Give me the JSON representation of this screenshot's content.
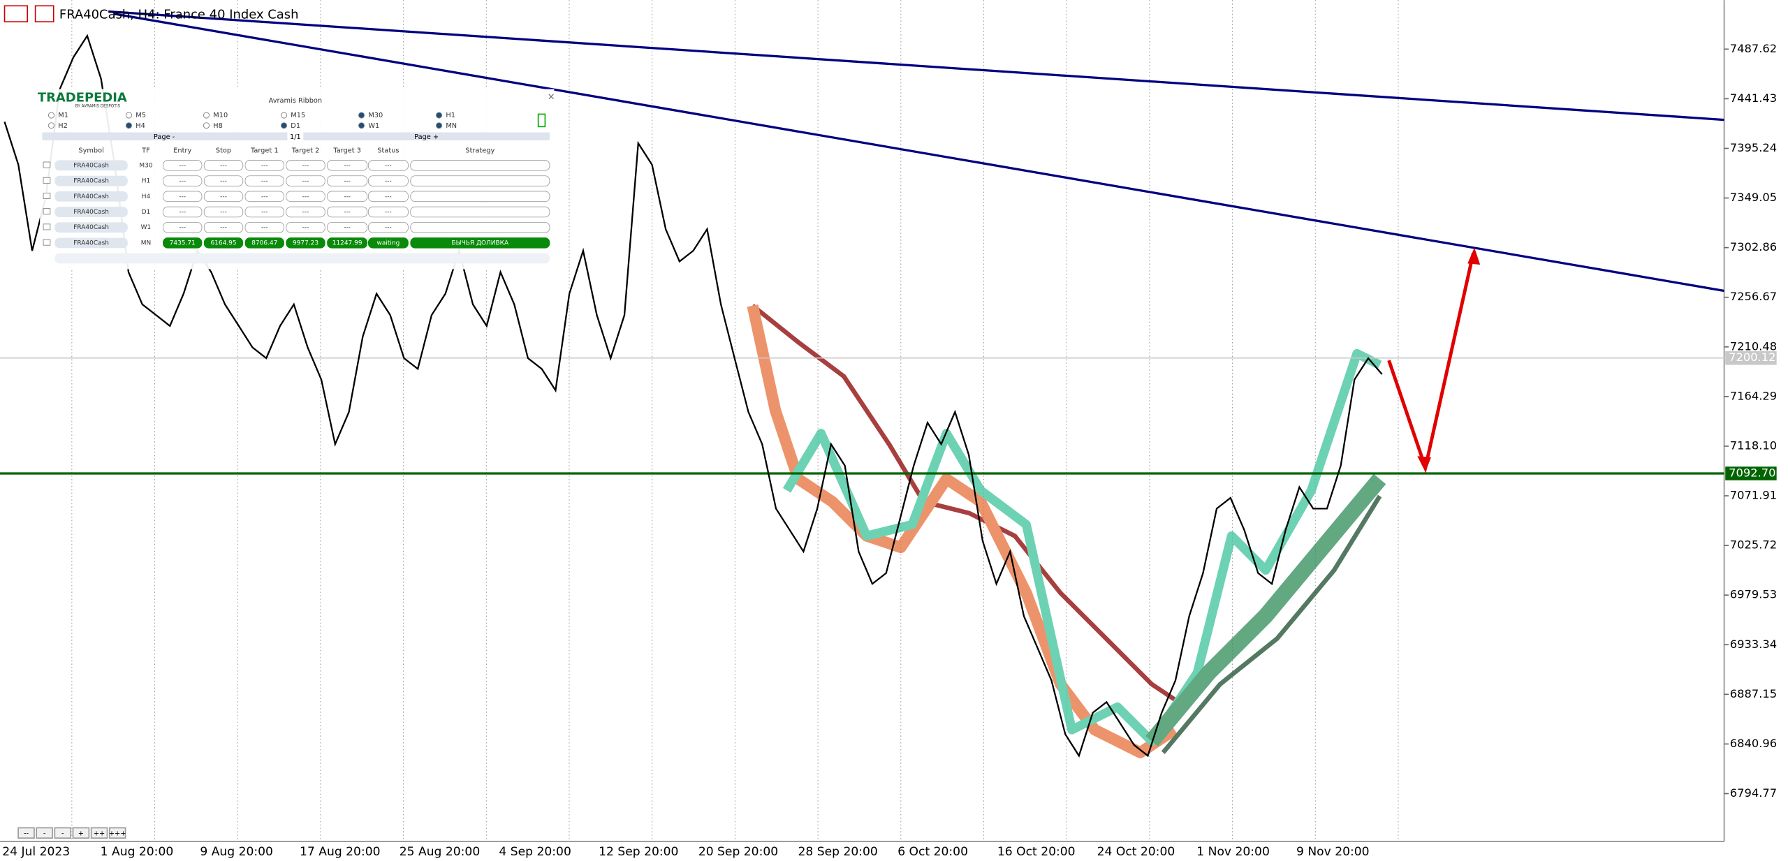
{
  "window": {
    "title": "FRA40Cash, H4:  France 40 Index Cash",
    "nav_buttons": [
      "--",
      "-",
      "-",
      "+",
      "++",
      "+++"
    ]
  },
  "chart_data": {
    "type": "line",
    "color": "#000000",
    "values": [
      7420,
      7380,
      7300,
      7350,
      7450,
      7480,
      7500,
      7460,
      7380,
      7280,
      7250,
      7240,
      7230,
      7260,
      7300,
      7280,
      7250,
      7230,
      7210,
      7200,
      7230,
      7250,
      7210,
      7180,
      7120,
      7150,
      7220,
      7260,
      7240,
      7200,
      7190,
      7240,
      7260,
      7300,
      7250,
      7230,
      7280,
      7250,
      7200,
      7190,
      7170,
      7260,
      7300,
      7240,
      7200,
      7240,
      7400,
      7380,
      7320,
      7290,
      7300,
      7320,
      7250,
      7200,
      7150,
      7120,
      7060,
      7040,
      7020,
      7060,
      7120,
      7100,
      7020,
      6990,
      7000,
      7050,
      7100,
      7140,
      7120,
      7150,
      7110,
      7030,
      6990,
      7020,
      6960,
      6930,
      6900,
      6850,
      6830,
      6870,
      6880,
      6860,
      6840,
      6830,
      6870,
      6900,
      6960,
      7000,
      7060,
      7070,
      7040,
      7000,
      6990,
      7040,
      7080,
      7060,
      7060,
      7100,
      7180,
      7200,
      7185
    ],
    "ylim": [
      6750.2,
      7533.2
    ],
    "yticks": [
      7487.62,
      7441.43,
      7395.24,
      7349.05,
      7302.86,
      7256.67,
      7210.48,
      7164.29,
      {
        "value": 7118.1,
        "label": "7118.10"
      },
      7071.91,
      7025.72,
      6979.53,
      6933.34,
      6887.15,
      6840.96,
      6794.77
    ],
    "date_labels": [
      "24 Jul 2023",
      "1 Aug 20:00",
      "9 Aug 20:00",
      "17 Aug 20:00",
      "25 Aug 20:00",
      "4 Sep 20:00",
      "12 Sep 20:00",
      "20 Sep 20:00",
      "28 Sep 20:00",
      "6 Oct 20:00",
      "16 Oct 20:00",
      "24 Oct 20:00",
      "1 Nov 20:00",
      "9 Nov 20:00"
    ],
    "levels": [
      {
        "value": 7200.12,
        "label": "7200.12",
        "color": "#c8c8c8"
      },
      {
        "value": 7092.7,
        "label": "7092.70",
        "color": "#006400"
      }
    ]
  },
  "panel": {
    "title": "Avramis Ribbon",
    "logo": "TRADEPEDIA",
    "logo_sub": "BY AVRAMIS DESPOTIS",
    "timeframes": [
      {
        "label": "M1",
        "selected": false
      },
      {
        "label": "M5",
        "selected": false
      },
      {
        "label": "M10",
        "selected": false
      },
      {
        "label": "M15",
        "selected": false
      },
      {
        "label": "M30",
        "selected": true
      },
      {
        "label": "H1",
        "selected": true
      },
      {
        "label": "H2",
        "selected": false
      },
      {
        "label": "H4",
        "selected": true
      },
      {
        "label": "H8",
        "selected": false
      },
      {
        "label": "D1",
        "selected": true
      },
      {
        "label": "W1",
        "selected": true
      },
      {
        "label": "MN",
        "selected": true
      }
    ],
    "page_prev": "Page -",
    "page_info": "1/1",
    "page_next": "Page +",
    "headers": [
      "Symbol",
      "TF",
      "Entry",
      "Stop",
      "Target 1",
      "Target 2",
      "Target 3",
      "Status",
      "Strategy"
    ],
    "rows": [
      [
        "FRA40Cash",
        "M30",
        "---",
        "---",
        "---",
        "---",
        "---",
        "---",
        ""
      ],
      [
        "FRA40Cash",
        "H1",
        "---",
        "---",
        "---",
        "---",
        "---",
        "---",
        ""
      ],
      [
        "FRA40Cash",
        "H4",
        "---",
        "---",
        "---",
        "---",
        "---",
        "---",
        ""
      ],
      [
        "FRA40Cash",
        "D1",
        "---",
        "---",
        "---",
        "---",
        "---",
        "---",
        ""
      ],
      [
        "FRA40Cash",
        "W1",
        "---",
        "---",
        "---",
        "---",
        "---",
        "---",
        ""
      ],
      [
        "FRA40Cash",
        "MN",
        "7435.71",
        "6164.95",
        "8706.47",
        "9977.23",
        "11247.99",
        "waiting",
        "БЫЧЬЯ ДОЛИВКА"
      ]
    ]
  }
}
